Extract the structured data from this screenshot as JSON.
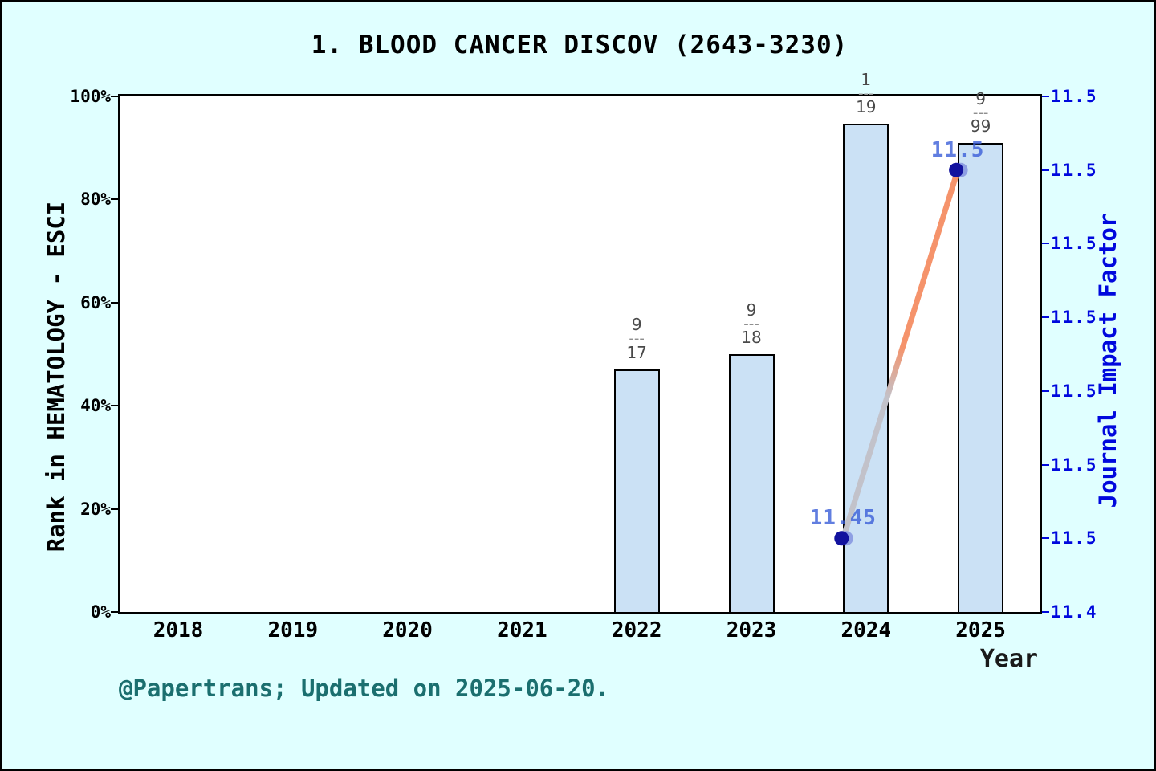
{
  "title": "1. BLOOD CANCER DISCOV (2643-3230)",
  "footer": "@Papertrans; Updated on 2025-06-20.",
  "axes": {
    "left": {
      "label": "Rank in HEMATOLOGY - ESCI",
      "ticks": [
        "0%",
        "20%",
        "40%",
        "60%",
        "80%",
        "100%"
      ]
    },
    "right": {
      "label": "Journal Impact Factor",
      "ticks_top_to_bottom": [
        "11.5",
        "11.5",
        "11.5",
        "11.5",
        "11.5",
        "11.5",
        "11.5",
        "11.4"
      ]
    },
    "x": {
      "label": "Year",
      "ticks": [
        "2018",
        "2019",
        "2020",
        "2021",
        "2022",
        "2023",
        "2024",
        "2025"
      ]
    }
  },
  "colors": {
    "background": "#E0FFFF",
    "plot_background": "#ffffff",
    "bar_fill": "#CBE1F5",
    "bar_edge": "#000000",
    "right_axis_blue": "#0008DD",
    "line_gray": "#C2C2CA",
    "line_orange": "#F5936B",
    "marker_dark": "#12129E",
    "marker_light": "#8E9FE3",
    "point_label_blue": "#3A5ED8",
    "fraction_text": "#4a4a4a",
    "footer_teal": "#1B6F6F"
  },
  "chart_data": {
    "type": "bar",
    "title": "1. BLOOD CANCER DISCOV (2643-3230)",
    "xlabel": "Year",
    "categories": [
      "2018",
      "2019",
      "2020",
      "2021",
      "2022",
      "2023",
      "2024",
      "2025"
    ],
    "left_axis": {
      "label": "Rank in HEMATOLOGY - ESCI",
      "range": [
        0,
        100
      ],
      "unit": "%",
      "tick_labels": [
        "0%",
        "20%",
        "40%",
        "60%",
        "80%",
        "100%"
      ],
      "grid": false
    },
    "right_axis": {
      "label": "Journal Impact Factor",
      "range": [
        11.44,
        11.51
      ],
      "tick_step": 0.01,
      "tick_labels_top_to_bottom": [
        "11.5",
        "11.5",
        "11.5",
        "11.5",
        "11.5",
        "11.5",
        "11.5",
        "11.4"
      ]
    },
    "series": [
      {
        "name": "Rank percentile in HEMATOLOGY - ESCI",
        "type": "bar",
        "axis": "left",
        "points": [
          {
            "year": "2022",
            "rank": 9,
            "total": 17,
            "fraction_label": "9/17",
            "percentile": 47.1
          },
          {
            "year": "2023",
            "rank": 9,
            "total": 18,
            "fraction_label": "9/18",
            "percentile": 50.0
          },
          {
            "year": "2024",
            "rank": 1,
            "total": 19,
            "fraction_label": "1/19",
            "percentile": 94.7
          },
          {
            "year": "2025",
            "rank": 9,
            "total": 99,
            "fraction_label": "9/99",
            "percentile": 90.9
          }
        ]
      },
      {
        "name": "Journal Impact Factor",
        "type": "line",
        "axis": "right",
        "points": [
          {
            "year": "2024",
            "value": 11.45,
            "label": "11.45"
          },
          {
            "year": "2025",
            "value": 11.5,
            "label": "11.5"
          }
        ]
      }
    ],
    "legend": "none"
  }
}
